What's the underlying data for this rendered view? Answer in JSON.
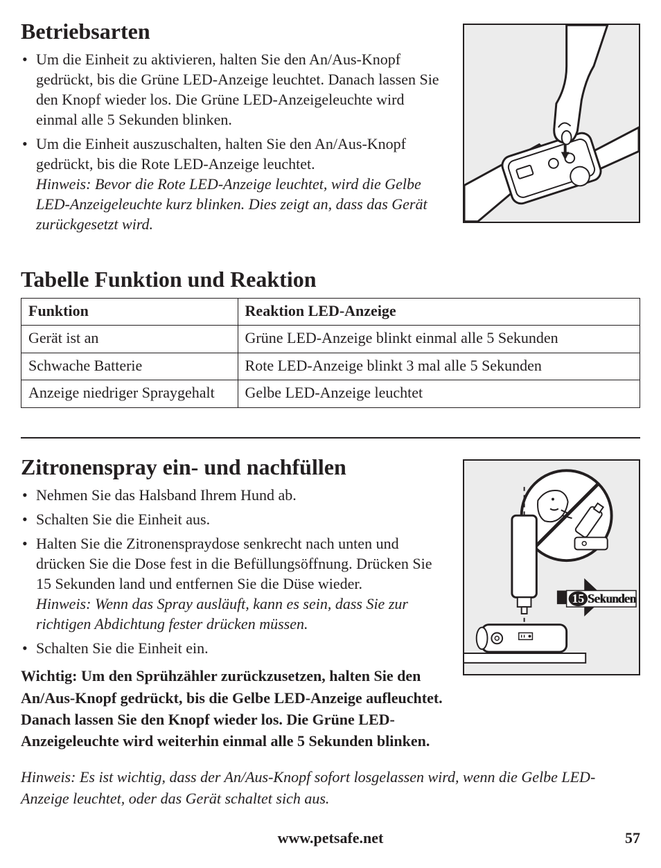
{
  "section1": {
    "heading": "Betriebsarten",
    "bullet1": "Um die Einheit zu aktivieren, halten Sie den An/Aus-Knopf gedrückt, bis die Grüne LED-Anzeige leuchtet. Danach lassen Sie den Knopf wieder los. Die Grüne LED-Anzeigeleuchte wird einmal alle 5 Sekunden blinken.",
    "bullet2a": "Um die Einheit auszuschalten, halten Sie den An/Aus-Knopf gedrückt, bis die Rote LED-Anzeige leuchtet.",
    "bullet2b": "Hinweis: Bevor die Rote LED-Anzeige leuchtet, wird die Gelbe LED-Anzeigeleuchte kurz blinken. Dies zeigt an, dass das Gerät zurückgesetzt wird."
  },
  "section2": {
    "heading": "Tabelle Funktion und Reaktion",
    "col1_header": "Funktion",
    "col2_header": "Reaktion LED-Anzeige",
    "col1_width_pct": 35,
    "col2_width_pct": 65,
    "rows": [
      {
        "c1": "Gerät ist an",
        "c2": "Grüne LED-Anzeige blinkt einmal alle 5 Sekunden"
      },
      {
        "c1": "Schwache Batterie",
        "c2": "Rote LED-Anzeige blinkt 3 mal alle 5 Sekunden"
      },
      {
        "c1": "Anzeige niedriger Spraygehalt",
        "c2": "Gelbe LED-Anzeige leuchtet"
      }
    ]
  },
  "section3": {
    "heading": "Zitronenspray ein- und nachfüllen",
    "bullet1": "Nehmen Sie das Halsband Ihrem Hund ab.",
    "bullet2": "Schalten Sie die Einheit aus.",
    "bullet3a": "Halten Sie die Zitronenspraydose senkrecht nach unten und drücken Sie die Dose fest in die Befüllungsöffnung. Drücken Sie 15 Sekunden land und entfernen Sie die Düse wieder.",
    "bullet3b": "Hinweis: Wenn das Spray ausläuft, kann es sein, dass Sie zur richtigen Abdichtung fester drücken müssen.",
    "bullet4": "Schalten Sie die Einheit ein.",
    "important": "Wichtig: Um den Sprühzähler zurückzusetzen, halten Sie den An/Aus-Knopf gedrückt, bis die Gelbe LED-Anzeige aufleuchtet. Danach lassen Sie den Knopf wieder los. Die Grüne LED-Anzeigeleuchte wird weiterhin einmal alle 5 Sekunden blinken."
  },
  "final_note": "Hinweis: Es ist wichtig, dass der An/Aus-Knopf sofort losgelassen wird, wenn die Gelbe LED-Anzeige leuchtet, oder das Gerät schaltet sich aus.",
  "illus2_label_num": "15",
  "illus2_label_text": " Sekunden",
  "footer_url": "www.petsafe.net",
  "page_number": "57",
  "colors": {
    "text": "#231f20",
    "border": "#231f20",
    "illus_bg": "#ececec",
    "white": "#ffffff"
  }
}
